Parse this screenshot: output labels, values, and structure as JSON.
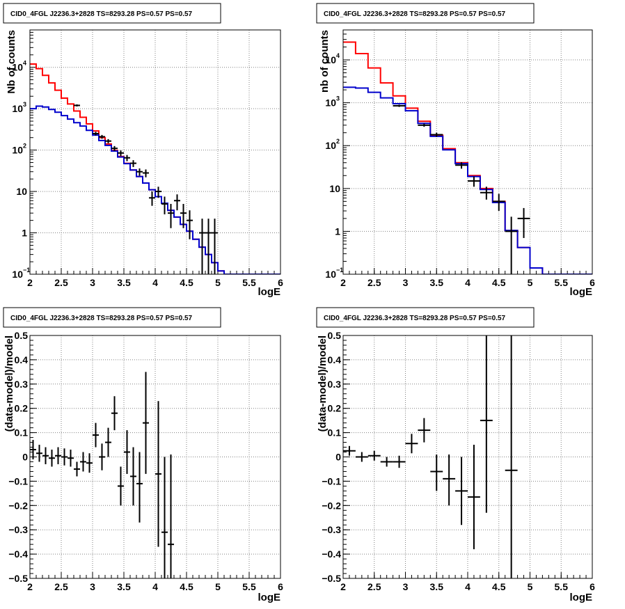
{
  "colors": {
    "total_model": "#ff0000",
    "source_model": "#0000cc",
    "data": "#000000",
    "grid": "#808080"
  },
  "chart_data": [
    {
      "id": "tl",
      "type": "line",
      "title": "CID0_4FGL J2236.3+2828 TS=8293.28 PS=0.57 PS=0.57",
      "xlabel": "logE",
      "ylabel": "Nb of counts",
      "xlim": [
        2,
        6
      ],
      "ylim": [
        0.1,
        80000
      ],
      "yscale": "log",
      "grid": true,
      "xticks": [
        "2",
        "2.5",
        "3",
        "3.5",
        "4",
        "4.5",
        "5",
        "5.5",
        "6"
      ],
      "yticks": [
        {
          "base": "10",
          "exp": "−1",
          "v": 0.1
        },
        {
          "base": "1",
          "exp": "",
          "v": 1
        },
        {
          "base": "10",
          "exp": "",
          "v": 10
        },
        {
          "base": "10",
          "exp": "2",
          "v": 100
        },
        {
          "base": "10",
          "exp": "3",
          "v": 1000
        },
        {
          "base": "10",
          "exp": "4",
          "v": 10000
        }
      ],
      "bin_edges": [
        2.0,
        2.1,
        2.2,
        2.3,
        2.4,
        2.5,
        2.6,
        2.7,
        2.8,
        2.9,
        3.0,
        3.1,
        3.2,
        3.3,
        3.4,
        3.5,
        3.6,
        3.7,
        3.8,
        3.9,
        4.0,
        4.1,
        4.2,
        4.3,
        4.4,
        4.5,
        4.6,
        4.7,
        4.8,
        4.9,
        5.0,
        5.1,
        5.2,
        5.3,
        5.4,
        5.5,
        5.6,
        5.7,
        5.8,
        5.9,
        6.0
      ],
      "series": [
        {
          "name": "",
          "kind": "step",
          "color": "#ff0000",
          "values": [
            12000,
            9300,
            6400,
            4200,
            2800,
            1800,
            1300,
            880,
            620,
            430,
            290,
            200,
            140,
            98,
            70,
            48,
            33,
            23,
            16,
            11,
            7.5,
            5.2,
            3.5,
            2.4,
            1.6,
            1.1,
            0.7,
            0.45,
            0.3,
            0.19,
            0.12,
            0.1,
            0.1,
            0.1,
            0.1,
            0.1,
            0.1,
            0.1,
            0.1,
            0.1
          ]
        },
        {
          "name": "",
          "kind": "step",
          "color": "#0000cc",
          "values": [
            1000,
            1150,
            1100,
            960,
            820,
            680,
            560,
            460,
            380,
            300,
            230,
            170,
            130,
            95,
            68,
            47,
            33,
            23,
            16,
            11,
            7.5,
            5.2,
            3.5,
            2.4,
            1.6,
            1.1,
            0.7,
            0.45,
            0.3,
            0.19,
            0.12,
            0.1,
            0.1,
            0.1,
            0.1,
            0.1,
            0.1,
            0.1,
            0.1,
            0.1
          ]
        },
        {
          "name": "",
          "kind": "points",
          "color": "#000000",
          "points": [
            {
              "x": 2.75,
              "y": 1200,
              "ylo": 1130,
              "yhi": 1270
            },
            {
              "x": 3.05,
              "y": 250,
              "ylo": 225,
              "yhi": 275
            },
            {
              "x": 3.15,
              "y": 210,
              "ylo": 188,
              "yhi": 232
            },
            {
              "x": 3.25,
              "y": 165,
              "ylo": 146,
              "yhi": 184
            },
            {
              "x": 3.35,
              "y": 110,
              "ylo": 95,
              "yhi": 125
            },
            {
              "x": 3.45,
              "y": 85,
              "ylo": 72,
              "yhi": 98
            },
            {
              "x": 3.55,
              "y": 65,
              "ylo": 54,
              "yhi": 76
            },
            {
              "x": 3.65,
              "y": 48,
              "ylo": 39,
              "yhi": 57
            },
            {
              "x": 3.75,
              "y": 30,
              "ylo": 24,
              "yhi": 36
            },
            {
              "x": 3.85,
              "y": 28,
              "ylo": 22,
              "yhi": 34
            },
            {
              "x": 3.95,
              "y": 7,
              "ylo": 4.5,
              "yhi": 10
            },
            {
              "x": 4.05,
              "y": 10,
              "ylo": 7,
              "yhi": 13
            },
            {
              "x": 4.15,
              "y": 5,
              "ylo": 2.8,
              "yhi": 7.5
            },
            {
              "x": 4.25,
              "y": 3,
              "ylo": 1.3,
              "yhi": 5
            },
            {
              "x": 4.35,
              "y": 6,
              "ylo": 3.5,
              "yhi": 8.5
            },
            {
              "x": 4.45,
              "y": 3,
              "ylo": 1.3,
              "yhi": 5
            },
            {
              "x": 4.55,
              "y": 2,
              "ylo": 0.7,
              "yhi": 3.5
            },
            {
              "x": 4.75,
              "y": 1,
              "ylo": 0.1,
              "yhi": 2.2
            },
            {
              "x": 4.85,
              "y": 1,
              "ylo": 0.1,
              "yhi": 2.2
            },
            {
              "x": 4.95,
              "y": 1,
              "ylo": 0.1,
              "yhi": 2.2
            }
          ]
        }
      ]
    },
    {
      "id": "tr",
      "type": "line",
      "title": "CID0_4FGL J2236.3+2828 TS=8293.28 PS=0.57 PS=0.57",
      "xlabel": "logE",
      "ylabel": "nb of counts",
      "xlim": [
        2,
        6
      ],
      "ylim": [
        0.1,
        50000
      ],
      "yscale": "log",
      "grid": true,
      "xticks": [
        "2",
        "2.5",
        "3",
        "3.5",
        "4",
        "4.5",
        "5",
        "5.5",
        "6"
      ],
      "yticks": [
        {
          "base": "10",
          "exp": "−1",
          "v": 0.1
        },
        {
          "base": "1",
          "exp": "",
          "v": 1
        },
        {
          "base": "10",
          "exp": "",
          "v": 10
        },
        {
          "base": "10",
          "exp": "2",
          "v": 100
        },
        {
          "base": "10",
          "exp": "3",
          "v": 1000
        },
        {
          "base": "10",
          "exp": "4",
          "v": 10000
        }
      ],
      "bin_edges": [
        2.0,
        2.2,
        2.4,
        2.6,
        2.8,
        3.0,
        3.2,
        3.4,
        3.6,
        3.8,
        4.0,
        4.2,
        4.4,
        4.6,
        4.8,
        5.0,
        5.2,
        5.4,
        5.6,
        5.8,
        6.0
      ],
      "series": [
        {
          "name": "",
          "kind": "step",
          "color": "#ff0000",
          "values": [
            26000,
            14000,
            6500,
            2900,
            1450,
            750,
            370,
            175,
            85,
            40,
            20,
            10,
            5,
            1.05,
            0.42,
            0.14,
            0.1,
            0.1,
            0.1,
            0.1
          ]
        },
        {
          "name": "",
          "kind": "step",
          "color": "#0000cc",
          "values": [
            2300,
            2200,
            1750,
            1300,
            950,
            650,
            330,
            165,
            80,
            38,
            19,
            9.5,
            4.7,
            1.05,
            0.42,
            0.14,
            0.1,
            0.1,
            0.1,
            0.1
          ]
        },
        {
          "name": "",
          "kind": "points",
          "color": "#000000",
          "points": [
            {
              "x": 2.9,
              "y": 850,
              "ylo": 800,
              "yhi": 900
            },
            {
              "x": 3.3,
              "y": 300,
              "ylo": 275,
              "yhi": 325
            },
            {
              "x": 3.5,
              "y": 180,
              "ylo": 160,
              "yhi": 200
            },
            {
              "x": 3.9,
              "y": 35,
              "ylo": 29,
              "yhi": 41
            },
            {
              "x": 4.1,
              "y": 15,
              "ylo": 11,
              "yhi": 19
            },
            {
              "x": 4.3,
              "y": 8,
              "ylo": 5.5,
              "yhi": 11
            },
            {
              "x": 4.5,
              "y": 5,
              "ylo": 3,
              "yhi": 7.5
            },
            {
              "x": 4.7,
              "y": 1,
              "ylo": 0.1,
              "yhi": 2.2
            },
            {
              "x": 4.9,
              "y": 2,
              "ylo": 0.7,
              "yhi": 3.5
            }
          ]
        }
      ]
    },
    {
      "id": "bl",
      "type": "scatter",
      "title": "CID0_4FGL J2236.3+2828 TS=8293.28 PS=0.57 PS=0.57",
      "xlabel": "logE",
      "ylabel": "(data-model)/model",
      "xlim": [
        2,
        6
      ],
      "ylim": [
        -0.5,
        0.5
      ],
      "yscale": "linear",
      "grid": true,
      "xticks": [
        "2",
        "2.5",
        "3",
        "3.5",
        "4",
        "4.5",
        "5",
        "5.5",
        "6"
      ],
      "yticks": [
        "−0.5",
        "−0.4",
        "−0.3",
        "−0.2",
        "−0.1",
        "0",
        "0.1",
        "0.2",
        "0.3",
        "0.4",
        "0.5"
      ],
      "series": [
        {
          "name": "",
          "kind": "points",
          "color": "#000000",
          "points": [
            {
              "x": 2.05,
              "y": 0.03,
              "ylo": -0.01,
              "yhi": 0.07,
              "xhw": 0.05
            },
            {
              "x": 2.15,
              "y": 0.015,
              "ylo": -0.02,
              "yhi": 0.05,
              "xhw": 0.05
            },
            {
              "x": 2.25,
              "y": 0.005,
              "ylo": -0.03,
              "yhi": 0.04,
              "xhw": 0.05
            },
            {
              "x": 2.35,
              "y": -0.005,
              "ylo": -0.04,
              "yhi": 0.03,
              "xhw": 0.05
            },
            {
              "x": 2.45,
              "y": 0.005,
              "ylo": -0.03,
              "yhi": 0.04,
              "xhw": 0.05
            },
            {
              "x": 2.55,
              "y": 0.0,
              "ylo": -0.035,
              "yhi": 0.035,
              "xhw": 0.05
            },
            {
              "x": 2.65,
              "y": -0.005,
              "ylo": -0.04,
              "yhi": 0.03,
              "xhw": 0.05
            },
            {
              "x": 2.75,
              "y": -0.05,
              "ylo": -0.08,
              "yhi": -0.02,
              "xhw": 0.05
            },
            {
              "x": 2.85,
              "y": -0.02,
              "ylo": -0.06,
              "yhi": 0.02,
              "xhw": 0.05
            },
            {
              "x": 2.95,
              "y": -0.025,
              "ylo": -0.065,
              "yhi": 0.015,
              "xhw": 0.05
            },
            {
              "x": 3.05,
              "y": 0.09,
              "ylo": 0.04,
              "yhi": 0.14,
              "xhw": 0.05
            },
            {
              "x": 3.15,
              "y": 0.0,
              "ylo": -0.055,
              "yhi": 0.055,
              "xhw": 0.05
            },
            {
              "x": 3.25,
              "y": 0.06,
              "ylo": 0.0,
              "yhi": 0.12,
              "xhw": 0.05
            },
            {
              "x": 3.35,
              "y": 0.18,
              "ylo": 0.11,
              "yhi": 0.25,
              "xhw": 0.05
            },
            {
              "x": 3.45,
              "y": -0.12,
              "ylo": -0.2,
              "yhi": -0.04,
              "xhw": 0.05
            },
            {
              "x": 3.55,
              "y": 0.02,
              "ylo": -0.07,
              "yhi": 0.11,
              "xhw": 0.05
            },
            {
              "x": 3.65,
              "y": -0.08,
              "ylo": -0.2,
              "yhi": 0.04,
              "xhw": 0.05
            },
            {
              "x": 3.75,
              "y": -0.11,
              "ylo": -0.27,
              "yhi": 0.02,
              "xhw": 0.05
            },
            {
              "x": 3.85,
              "y": 0.14,
              "ylo": -0.07,
              "yhi": 0.35,
              "xhw": 0.05
            },
            {
              "x": 4.05,
              "y": -0.07,
              "ylo": -0.37,
              "yhi": 0.23,
              "xhw": 0.05
            },
            {
              "x": 4.15,
              "y": -0.31,
              "ylo": -0.5,
              "yhi": 0.0,
              "xhw": 0.05
            },
            {
              "x": 4.25,
              "y": -0.36,
              "ylo": -0.5,
              "yhi": 0.01,
              "xhw": 0.05
            }
          ]
        }
      ]
    },
    {
      "id": "br",
      "type": "scatter",
      "title": "CID0_4FGL J2236.3+2828 TS=8293.28 PS=0.57 PS=0.57",
      "xlabel": "logE",
      "ylabel": "(data-model)/model",
      "xlim": [
        2,
        6
      ],
      "ylim": [
        -0.5,
        0.5
      ],
      "yscale": "linear",
      "grid": true,
      "xticks": [
        "2",
        "2.5",
        "3",
        "3.5",
        "4",
        "4.5",
        "5",
        "5.5",
        "6"
      ],
      "yticks": [
        "−0.5",
        "−0.4",
        "−0.3",
        "−0.2",
        "−0.1",
        "0",
        "0.1",
        "0.2",
        "0.3",
        "0.4",
        "0.5"
      ],
      "series": [
        {
          "name": "",
          "kind": "points",
          "color": "#000000",
          "points": [
            {
              "x": 2.1,
              "y": 0.025,
              "ylo": 0.005,
              "yhi": 0.045,
              "xhw": 0.1
            },
            {
              "x": 2.3,
              "y": 0.0,
              "ylo": -0.02,
              "yhi": 0.02,
              "xhw": 0.1
            },
            {
              "x": 2.5,
              "y": 0.005,
              "ylo": -0.015,
              "yhi": 0.025,
              "xhw": 0.1
            },
            {
              "x": 2.7,
              "y": -0.02,
              "ylo": -0.04,
              "yhi": 0.0,
              "xhw": 0.1
            },
            {
              "x": 2.9,
              "y": -0.02,
              "ylo": -0.045,
              "yhi": 0.005,
              "xhw": 0.1
            },
            {
              "x": 3.1,
              "y": 0.055,
              "ylo": 0.015,
              "yhi": 0.095,
              "xhw": 0.1
            },
            {
              "x": 3.3,
              "y": 0.11,
              "ylo": 0.06,
              "yhi": 0.16,
              "xhw": 0.1
            },
            {
              "x": 3.5,
              "y": -0.06,
              "ylo": -0.14,
              "yhi": 0.01,
              "xhw": 0.1
            },
            {
              "x": 3.7,
              "y": -0.09,
              "ylo": -0.2,
              "yhi": 0.01,
              "xhw": 0.1
            },
            {
              "x": 3.9,
              "y": -0.14,
              "ylo": -0.28,
              "yhi": 0.0,
              "xhw": 0.1
            },
            {
              "x": 4.1,
              "y": -0.165,
              "ylo": -0.38,
              "yhi": 0.05,
              "xhw": 0.1
            },
            {
              "x": 4.3,
              "y": 0.15,
              "ylo": -0.23,
              "yhi": 0.5,
              "xhw": 0.1
            },
            {
              "x": 4.7,
              "y": -0.055,
              "ylo": -0.5,
              "yhi": 0.5,
              "xhw": 0.1
            }
          ]
        }
      ]
    }
  ]
}
